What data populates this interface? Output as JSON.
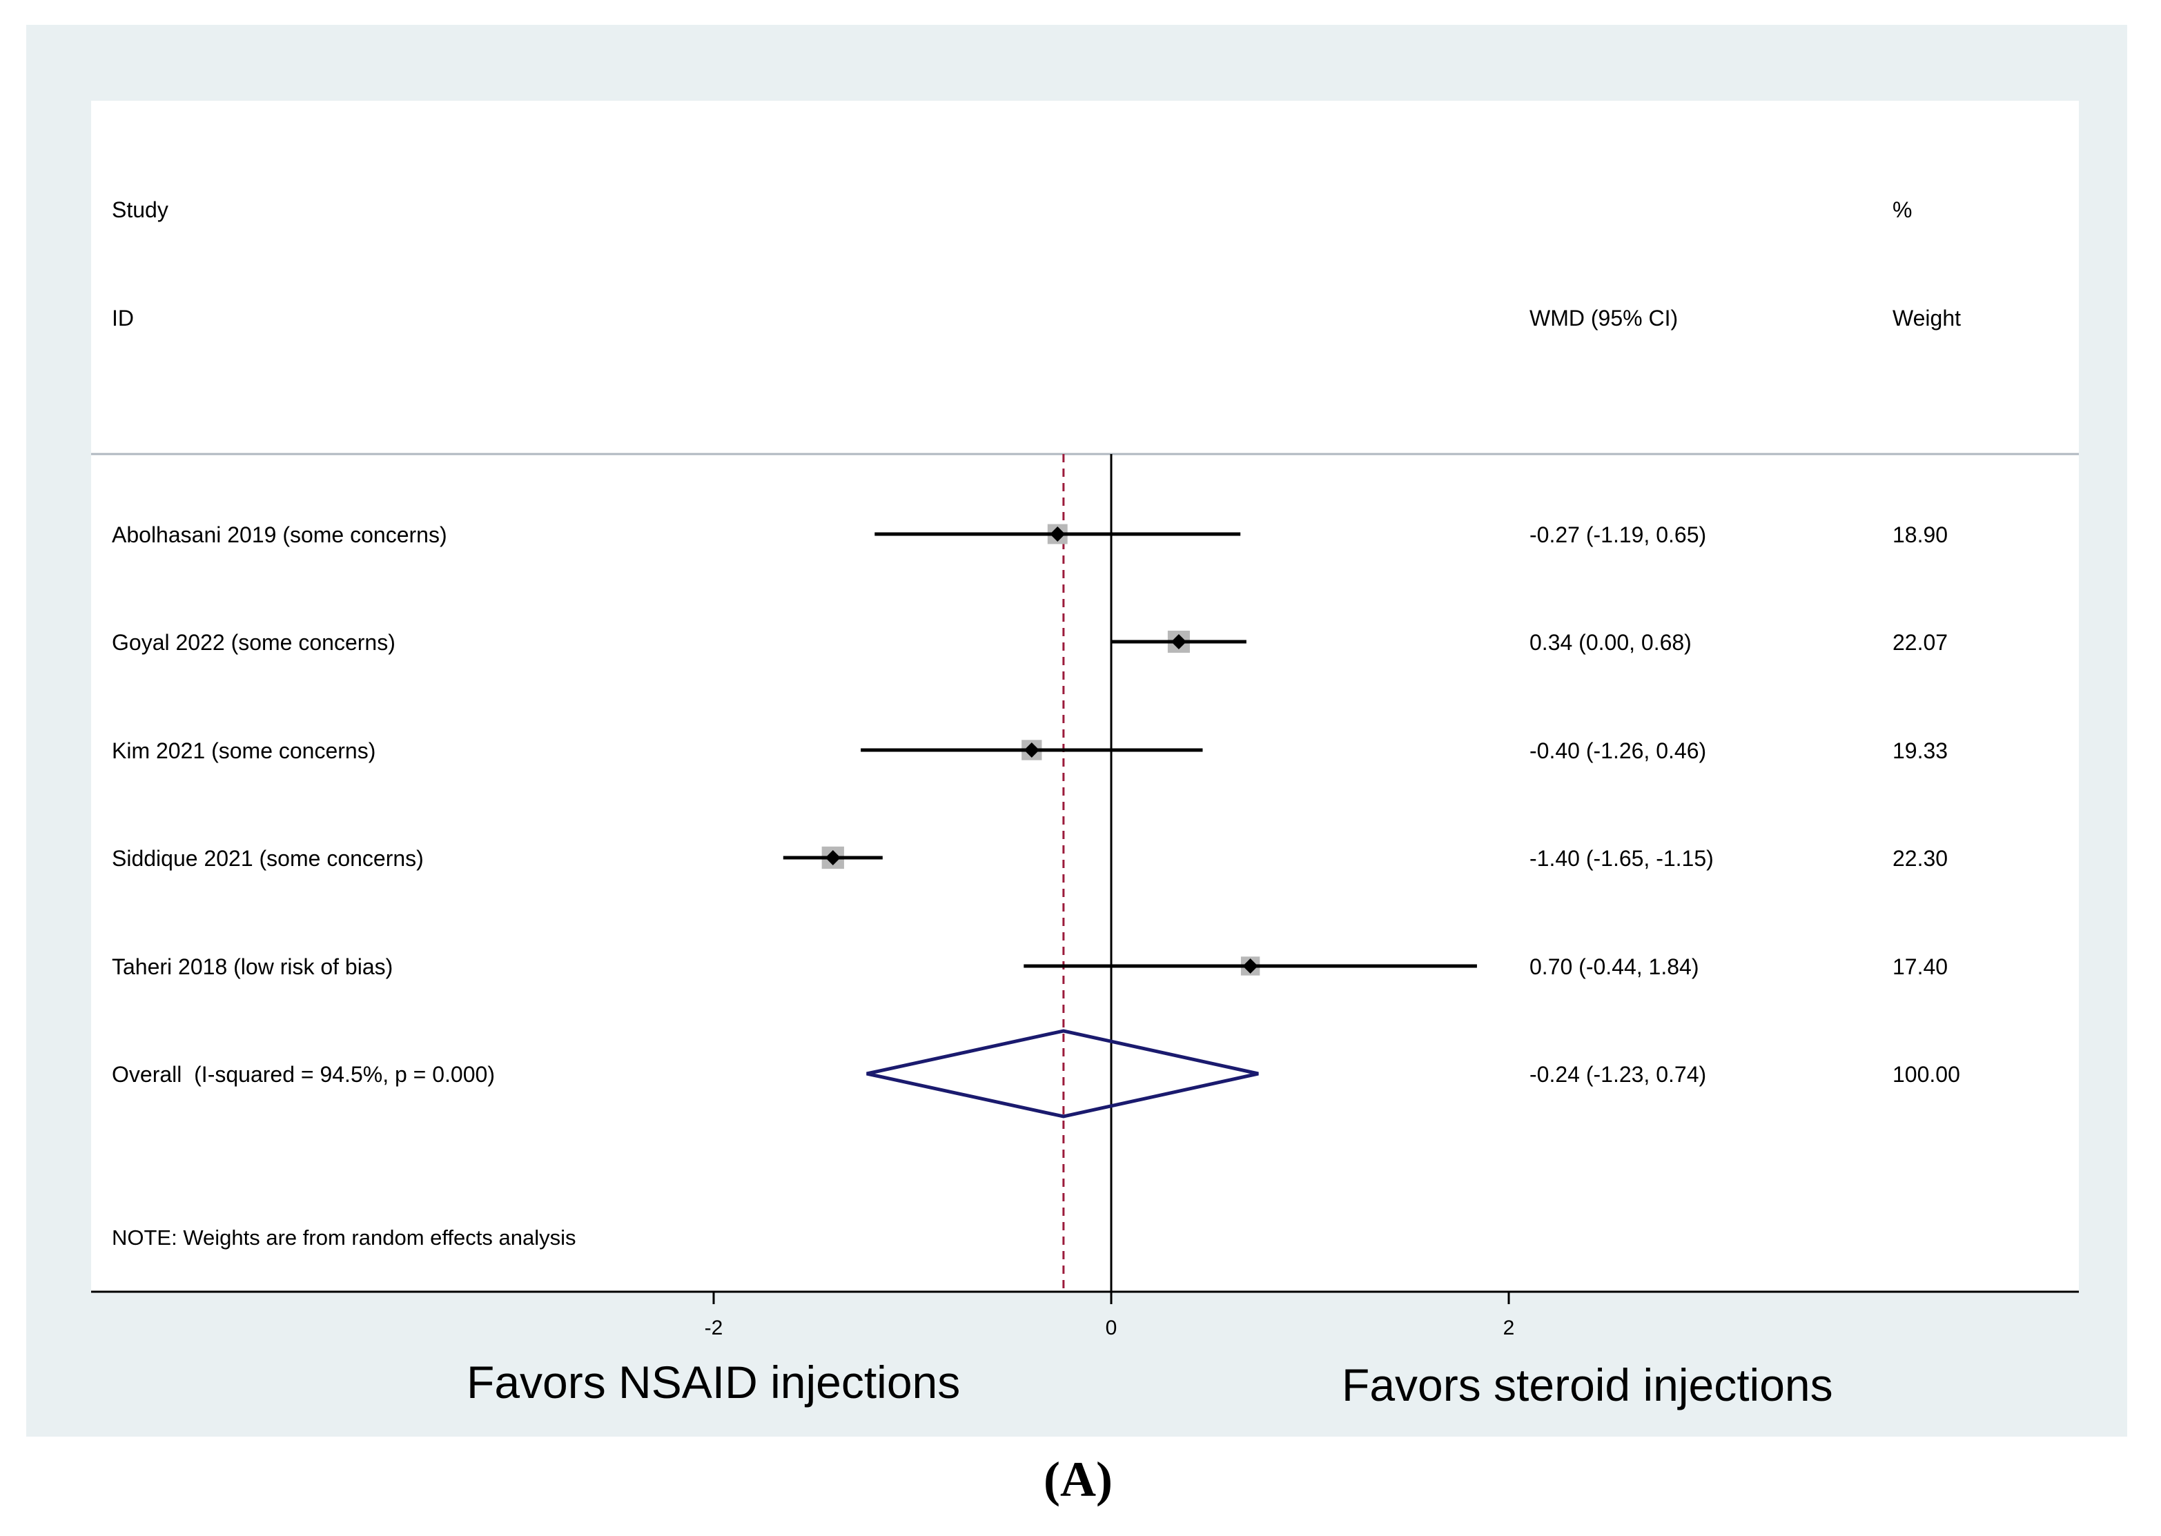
{
  "chart_data": {
    "type": "forest",
    "header": {
      "study_line1": "Study",
      "study_line2": "ID",
      "effect_header": "WMD (95% CI)",
      "weight_line1": "%",
      "weight_line2": "Weight"
    },
    "studies": [
      {
        "label": "Abolhasani 2019 (some concerns)",
        "estimate": -0.27,
        "lower": -1.19,
        "upper": 0.65,
        "ci_text": "-0.27 (-1.19, 0.65)",
        "weight": 18.9,
        "weight_text": "18.90"
      },
      {
        "label": "Goyal 2022 (some concerns)",
        "estimate": 0.34,
        "lower": 0.0,
        "upper": 0.68,
        "ci_text": "0.34 (0.00, 0.68)",
        "weight": 22.07,
        "weight_text": "22.07"
      },
      {
        "label": "Kim 2021 (some concerns)",
        "estimate": -0.4,
        "lower": -1.26,
        "upper": 0.46,
        "ci_text": "-0.40 (-1.26, 0.46)",
        "weight": 19.33,
        "weight_text": "19.33"
      },
      {
        "label": "Siddique 2021 (some concerns)",
        "estimate": -1.4,
        "lower": -1.65,
        "upper": -1.15,
        "ci_text": "-1.40 (-1.65, -1.15)",
        "weight": 22.3,
        "weight_text": "22.30"
      },
      {
        "label": "Taheri 2018 (low risk of bias)",
        "estimate": 0.7,
        "lower": -0.44,
        "upper": 1.84,
        "ci_text": "0.70 (-0.44, 1.84)",
        "weight": 17.4,
        "weight_text": "17.40"
      }
    ],
    "overall": {
      "label": "Overall  (I-squared = 94.5%, p = 0.000)",
      "estimate": -0.24,
      "lower": -1.23,
      "upper": 0.74,
      "ci_text": "-0.24 (-1.23, 0.74)",
      "weight_text": "100.00"
    },
    "note": "NOTE: Weights are from random effects analysis",
    "x_axis": {
      "ticks": [
        -2,
        0,
        2
      ],
      "tick_labels": [
        "-2",
        "0",
        "2"
      ],
      "range": [
        -5.13,
        4.87
      ]
    },
    "favors_left": "Favors NSAID injections",
    "favors_right": "Favors steroid injections",
    "null_line": 0,
    "panel_label": "(A)"
  },
  "colors": {
    "frame_bg": "#e9f0f2",
    "plot_bg": "#ffffff",
    "diamond": "#1a1a6e",
    "ref_line": "#9b1b3b",
    "weight_box": "#b8b8b8",
    "header_rule": "#b0b8c0"
  }
}
